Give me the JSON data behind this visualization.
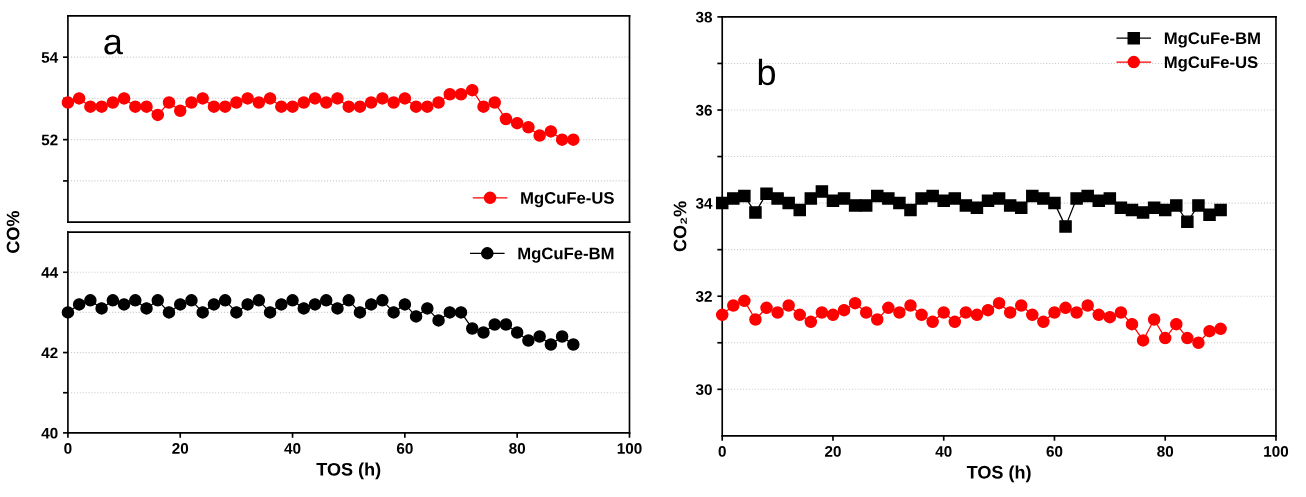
{
  "chart_data": [
    {
      "type": "line",
      "annotations": [
        "a"
      ],
      "x": [
        0,
        2,
        4,
        6,
        8,
        10,
        12,
        14,
        16,
        18,
        20,
        22,
        24,
        26,
        28,
        30,
        32,
        34,
        36,
        38,
        40,
        42,
        44,
        46,
        48,
        50,
        52,
        54,
        56,
        58,
        60,
        62,
        64,
        66,
        68,
        70,
        72,
        74,
        76,
        78,
        80,
        82,
        84,
        86,
        88,
        90
      ],
      "xlim": [
        0,
        100
      ],
      "ylim": [
        50,
        55
      ],
      "yticks": [
        {
          "value": 51,
          "label": null
        },
        52,
        {
          "value": 53,
          "label": null
        },
        54
      ],
      "tick_labels": "y",
      "grid": "y",
      "marker": "circle",
      "legend": "bottom right",
      "series": [
        {
          "name": "MgCuFe-US",
          "color": "#ff0000",
          "values": [
            52.9,
            53.0,
            52.8,
            52.8,
            52.9,
            53.0,
            52.8,
            52.8,
            52.6,
            52.9,
            52.7,
            52.9,
            53.0,
            52.8,
            52.8,
            52.9,
            53.0,
            52.9,
            53.0,
            52.8,
            52.8,
            52.9,
            53.0,
            52.9,
            53.0,
            52.8,
            52.8,
            52.9,
            53.0,
            52.9,
            53.0,
            52.8,
            52.8,
            52.9,
            53.1,
            53.1,
            53.2,
            52.8,
            52.9,
            52.5,
            52.4,
            52.3,
            52.1,
            52.2,
            52.0,
            52.0
          ]
        }
      ]
    },
    {
      "type": "line",
      "xlabel": "TOS (h)",
      "ylabel": "CO%",
      "x": [
        0,
        2,
        4,
        6,
        8,
        10,
        12,
        14,
        16,
        18,
        20,
        22,
        24,
        26,
        28,
        30,
        32,
        34,
        36,
        38,
        40,
        42,
        44,
        46,
        48,
        50,
        52,
        54,
        56,
        58,
        60,
        62,
        64,
        66,
        68,
        70,
        72,
        74,
        76,
        78,
        80,
        82,
        84,
        86,
        88,
        90
      ],
      "xlim": [
        0,
        100
      ],
      "xticks": [
        0,
        20,
        40,
        60,
        80,
        100
      ],
      "ylim": [
        40,
        45
      ],
      "yticks": [
        40,
        {
          "value": 41,
          "label": null
        },
        42,
        {
          "value": 43,
          "label": null
        },
        44
      ],
      "grid": "y",
      "marker": "circle",
      "legend": "top right",
      "series": [
        {
          "name": "MgCuFe-BM",
          "color": "#000000",
          "values": [
            43.0,
            43.2,
            43.3,
            43.1,
            43.3,
            43.2,
            43.3,
            43.1,
            43.3,
            43.0,
            43.2,
            43.3,
            43.0,
            43.2,
            43.3,
            43.0,
            43.2,
            43.3,
            43.0,
            43.2,
            43.3,
            43.1,
            43.2,
            43.3,
            43.1,
            43.3,
            43.0,
            43.2,
            43.3,
            43.0,
            43.2,
            42.9,
            43.1,
            42.8,
            43.0,
            43.0,
            42.6,
            42.5,
            42.7,
            42.7,
            42.5,
            42.3,
            42.4,
            42.2,
            42.4,
            42.2
          ]
        }
      ]
    },
    {
      "type": "line",
      "annotations": [
        "b"
      ],
      "xlabel": "TOS (h)",
      "ylabel": "CO₂%",
      "x": [
        0,
        2,
        4,
        6,
        8,
        10,
        12,
        14,
        16,
        18,
        20,
        22,
        24,
        26,
        28,
        30,
        32,
        34,
        36,
        38,
        40,
        42,
        44,
        46,
        48,
        50,
        52,
        54,
        56,
        58,
        60,
        62,
        64,
        66,
        68,
        70,
        72,
        74,
        76,
        78,
        80,
        82,
        84,
        86,
        88,
        90
      ],
      "xlim": [
        0,
        100
      ],
      "xticks": [
        0,
        20,
        40,
        60,
        80,
        100
      ],
      "ylim": [
        29,
        38
      ],
      "yticks": [
        30,
        {
          "value": 31,
          "label": null
        },
        32,
        {
          "value": 33,
          "label": null
        },
        34,
        {
          "value": 35,
          "label": null
        },
        36,
        {
          "value": 37,
          "label": null
        },
        38
      ],
      "grid": "y",
      "legend": "top right",
      "series": [
        {
          "name": "MgCuFe-BM",
          "color": "#000000",
          "marker": "square",
          "values": [
            34.0,
            34.1,
            34.15,
            33.8,
            34.2,
            34.1,
            34.0,
            33.85,
            34.1,
            34.25,
            34.05,
            34.1,
            33.95,
            33.95,
            34.15,
            34.1,
            34.0,
            33.85,
            34.1,
            34.15,
            34.05,
            34.1,
            33.95,
            33.9,
            34.05,
            34.1,
            33.95,
            33.9,
            34.15,
            34.1,
            34.0,
            33.5,
            34.1,
            34.15,
            34.05,
            34.1,
            33.9,
            33.85,
            33.8,
            33.9,
            33.85,
            33.95,
            33.6,
            33.95,
            33.75,
            33.85
          ]
        },
        {
          "name": "MgCuFe-US",
          "color": "#ff0000",
          "marker": "circle",
          "values": [
            31.6,
            31.8,
            31.9,
            31.5,
            31.75,
            31.65,
            31.8,
            31.6,
            31.45,
            31.65,
            31.6,
            31.7,
            31.85,
            31.65,
            31.5,
            31.75,
            31.65,
            31.8,
            31.6,
            31.45,
            31.65,
            31.45,
            31.65,
            31.6,
            31.7,
            31.85,
            31.65,
            31.8,
            31.6,
            31.45,
            31.65,
            31.75,
            31.65,
            31.8,
            31.6,
            31.55,
            31.65,
            31.4,
            31.05,
            31.5,
            31.1,
            31.4,
            31.1,
            31.0,
            31.25,
            31.3
          ]
        }
      ]
    }
  ]
}
